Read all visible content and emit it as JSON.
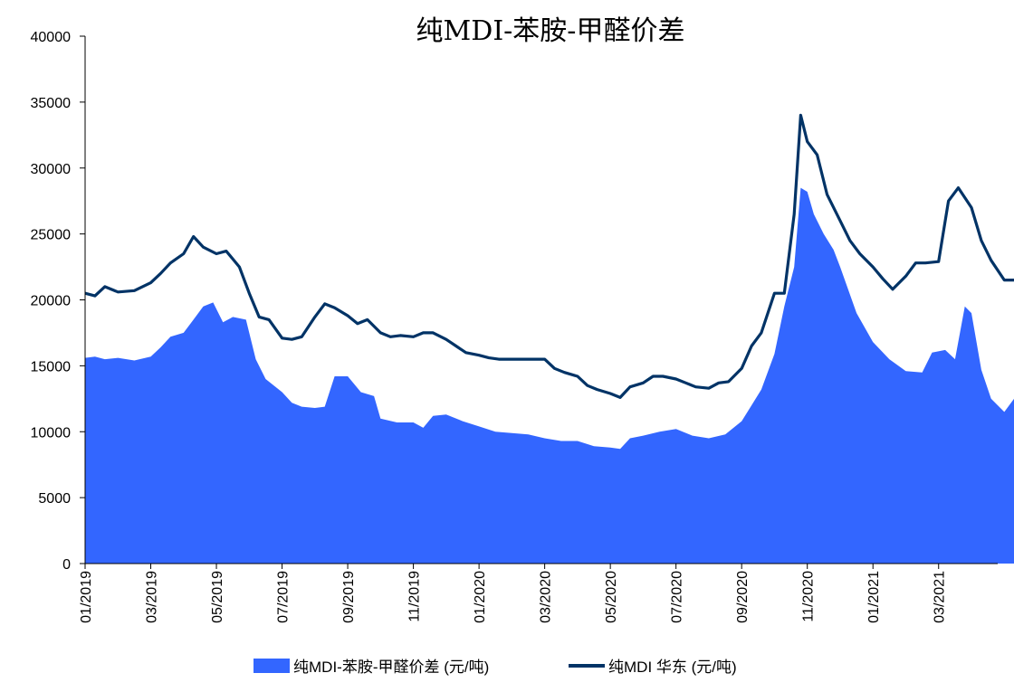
{
  "chart_data": {
    "type": "area+line",
    "title": "纯MDI-苯胺-甲醛价差",
    "xlabel": "",
    "ylabel": "",
    "ylim": [
      0,
      40000
    ],
    "yticks": [
      0,
      5000,
      10000,
      15000,
      20000,
      25000,
      30000,
      35000,
      40000
    ],
    "x_tick_labels": [
      "01/2019",
      "03/2019",
      "05/2019",
      "07/2019",
      "09/2019",
      "11/2019",
      "01/2020",
      "03/2020",
      "05/2020",
      "07/2020",
      "09/2020",
      "11/2020",
      "01/2021",
      "03/2021"
    ],
    "x_tick_months": [
      0,
      2,
      4,
      6,
      8,
      10,
      12,
      14,
      16,
      18,
      20,
      22,
      24,
      26
    ],
    "xlim_months": [
      0,
      27.8
    ],
    "grid": false,
    "legend_position": "bottom",
    "colors": {
      "area": "#3366ff",
      "line": "#003366"
    },
    "series": [
      {
        "name": "纯MDI-苯胺-甲醛价差 (元/吨)",
        "kind": "area",
        "points": [
          [
            0,
            15600
          ],
          [
            0.3,
            15700
          ],
          [
            0.6,
            15500
          ],
          [
            1.0,
            15600
          ],
          [
            1.5,
            15400
          ],
          [
            2.0,
            15700
          ],
          [
            2.3,
            16400
          ],
          [
            2.6,
            17200
          ],
          [
            3.0,
            17500
          ],
          [
            3.3,
            18500
          ],
          [
            3.6,
            19500
          ],
          [
            3.9,
            19800
          ],
          [
            4.2,
            18300
          ],
          [
            4.5,
            18700
          ],
          [
            4.9,
            18500
          ],
          [
            5.2,
            15500
          ],
          [
            5.5,
            14000
          ],
          [
            6.0,
            13000
          ],
          [
            6.3,
            12200
          ],
          [
            6.6,
            11900
          ],
          [
            7.0,
            11800
          ],
          [
            7.3,
            11900
          ],
          [
            7.6,
            14200
          ],
          [
            8.0,
            14200
          ],
          [
            8.4,
            13000
          ],
          [
            8.8,
            12700
          ],
          [
            9.0,
            11000
          ],
          [
            9.5,
            10700
          ],
          [
            10.0,
            10700
          ],
          [
            10.3,
            10300
          ],
          [
            10.6,
            11200
          ],
          [
            11.0,
            11300
          ],
          [
            11.5,
            10800
          ],
          [
            12.0,
            10400
          ],
          [
            12.5,
            10000
          ],
          [
            13.0,
            9900
          ],
          [
            13.5,
            9800
          ],
          [
            14.0,
            9500
          ],
          [
            14.5,
            9300
          ],
          [
            15.0,
            9300
          ],
          [
            15.5,
            8900
          ],
          [
            16.0,
            8800
          ],
          [
            16.3,
            8700
          ],
          [
            16.6,
            9500
          ],
          [
            17.0,
            9700
          ],
          [
            17.5,
            10000
          ],
          [
            18.0,
            10200
          ],
          [
            18.5,
            9700
          ],
          [
            19.0,
            9500
          ],
          [
            19.5,
            9800
          ],
          [
            20.0,
            10800
          ],
          [
            20.3,
            12000
          ],
          [
            20.6,
            13200
          ],
          [
            21.0,
            15900
          ],
          [
            21.3,
            19500
          ],
          [
            21.6,
            22500
          ],
          [
            21.8,
            28500
          ],
          [
            22.0,
            28200
          ],
          [
            22.2,
            26500
          ],
          [
            22.5,
            25000
          ],
          [
            22.8,
            23800
          ],
          [
            23.0,
            22500
          ],
          [
            23.5,
            19000
          ],
          [
            24.0,
            16800
          ],
          [
            24.5,
            15500
          ],
          [
            25.0,
            14600
          ],
          [
            25.5,
            14500
          ],
          [
            25.8,
            16000
          ],
          [
            26.2,
            16200
          ],
          [
            26.5,
            15500
          ],
          [
            26.8,
            19500
          ],
          [
            27.0,
            19000
          ],
          [
            27.3,
            14700
          ],
          [
            27.6,
            12500
          ],
          [
            28.0,
            11500
          ],
          [
            28.3,
            12500
          ],
          [
            28.6,
            13000
          ],
          [
            29.0,
            12500
          ],
          [
            29.2,
            12800
          ]
        ]
      },
      {
        "name": "纯MDI 华东 (元/吨)",
        "kind": "line",
        "points": [
          [
            0,
            20500
          ],
          [
            0.3,
            20300
          ],
          [
            0.6,
            21000
          ],
          [
            1.0,
            20600
          ],
          [
            1.5,
            20700
          ],
          [
            2.0,
            21300
          ],
          [
            2.3,
            22000
          ],
          [
            2.6,
            22800
          ],
          [
            3.0,
            23500
          ],
          [
            3.3,
            24800
          ],
          [
            3.6,
            24000
          ],
          [
            4.0,
            23500
          ],
          [
            4.3,
            23700
          ],
          [
            4.7,
            22500
          ],
          [
            5.0,
            20500
          ],
          [
            5.3,
            18700
          ],
          [
            5.6,
            18500
          ],
          [
            6.0,
            17100
          ],
          [
            6.3,
            17000
          ],
          [
            6.6,
            17200
          ],
          [
            7.0,
            18700
          ],
          [
            7.3,
            19700
          ],
          [
            7.6,
            19400
          ],
          [
            8.0,
            18800
          ],
          [
            8.3,
            18200
          ],
          [
            8.6,
            18500
          ],
          [
            9.0,
            17500
          ],
          [
            9.3,
            17200
          ],
          [
            9.6,
            17300
          ],
          [
            10.0,
            17200
          ],
          [
            10.3,
            17500
          ],
          [
            10.6,
            17500
          ],
          [
            11.0,
            17000
          ],
          [
            11.3,
            16500
          ],
          [
            11.6,
            16000
          ],
          [
            12.0,
            15800
          ],
          [
            12.3,
            15600
          ],
          [
            12.6,
            15500
          ],
          [
            13.0,
            15500
          ],
          [
            13.5,
            15500
          ],
          [
            14.0,
            15500
          ],
          [
            14.3,
            14800
          ],
          [
            14.6,
            14500
          ],
          [
            15.0,
            14200
          ],
          [
            15.3,
            13500
          ],
          [
            15.6,
            13200
          ],
          [
            16.0,
            12900
          ],
          [
            16.3,
            12600
          ],
          [
            16.6,
            13400
          ],
          [
            17.0,
            13700
          ],
          [
            17.3,
            14200
          ],
          [
            17.6,
            14200
          ],
          [
            18.0,
            14000
          ],
          [
            18.3,
            13700
          ],
          [
            18.6,
            13400
          ],
          [
            19.0,
            13300
          ],
          [
            19.3,
            13700
          ],
          [
            19.6,
            13800
          ],
          [
            20.0,
            14800
          ],
          [
            20.3,
            16500
          ],
          [
            20.6,
            17500
          ],
          [
            21.0,
            20500
          ],
          [
            21.3,
            20500
          ],
          [
            21.6,
            26500
          ],
          [
            21.8,
            34000
          ],
          [
            22.0,
            32000
          ],
          [
            22.3,
            31000
          ],
          [
            22.6,
            28000
          ],
          [
            23.0,
            26000
          ],
          [
            23.3,
            24500
          ],
          [
            23.6,
            23500
          ],
          [
            24.0,
            22500
          ],
          [
            24.3,
            21600
          ],
          [
            24.6,
            20800
          ],
          [
            25.0,
            21800
          ],
          [
            25.3,
            22800
          ],
          [
            25.6,
            22800
          ],
          [
            26.0,
            22900
          ],
          [
            26.3,
            27500
          ],
          [
            26.6,
            28500
          ],
          [
            27.0,
            27000
          ],
          [
            27.3,
            24500
          ],
          [
            27.6,
            23000
          ],
          [
            28.0,
            21500
          ],
          [
            28.3,
            21500
          ],
          [
            28.6,
            21500
          ],
          [
            29.0,
            21000
          ],
          [
            29.2,
            21400
          ]
        ]
      }
    ]
  }
}
